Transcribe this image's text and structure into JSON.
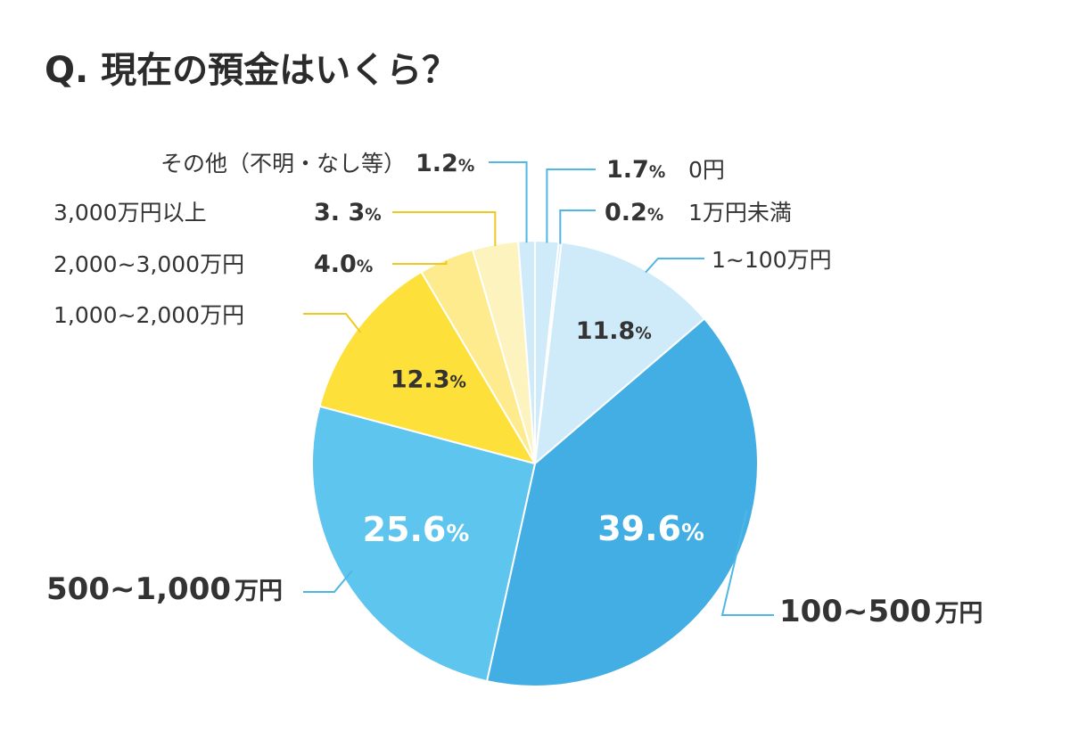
{
  "colors": {
    "dark_blue": "#42aee3",
    "mid_blue": "#5ec5ee",
    "light_blue": "#cfebfa",
    "yellow": "#fde03a",
    "light_yellow": "#fdeb8e",
    "pale_yellow": "#fdf3bf",
    "text": "#333333"
  },
  "chart_data": {
    "type": "pie",
    "title": "Q. 現在の預金はいくら？",
    "unit": "%",
    "start": "top",
    "direction": "clockwise",
    "slices": [
      {
        "key": "yen0",
        "label": "0円",
        "value": 1.7,
        "value_label": "1.7",
        "unit": "%",
        "color": "#cfebfa"
      },
      {
        "key": "lt1",
        "label": "1万円未満",
        "value": 0.2,
        "value_label": "0.2",
        "unit": "%",
        "color": "#cfebfa"
      },
      {
        "key": "1to100",
        "label": "1~100万円",
        "value": 11.8,
        "value_label": "11.8",
        "unit": "%",
        "color": "#cfebfa"
      },
      {
        "key": "100to500",
        "label": "100~500",
        "label_unit": "万円",
        "value": 39.6,
        "value_label": "39.6",
        "unit": "%",
        "color": "#42aee3"
      },
      {
        "key": "500to1000",
        "label": "500~1,000",
        "label_unit": "万円",
        "value": 25.6,
        "value_label": "25.6",
        "unit": "%",
        "color": "#5ec5ee"
      },
      {
        "key": "1000to2000",
        "label": "1,000~2,000万円",
        "value": 12.3,
        "value_label": "12.3",
        "unit": "%",
        "color": "#fde03a"
      },
      {
        "key": "2000to3000",
        "label": "2,000~3,000万円",
        "value": 4.0,
        "value_label": "4.0",
        "unit": "%",
        "color": "#fdeb8e"
      },
      {
        "key": "3000plus",
        "label": "3,000万円以上",
        "value": 3.3,
        "value_label": "3. 3",
        "unit": "%",
        "color": "#fdf3bf"
      },
      {
        "key": "other",
        "label": "その他（不明・なし等）",
        "value": 1.2,
        "value_label": "1.2",
        "unit": "%",
        "color": "#cfebfa"
      }
    ]
  }
}
